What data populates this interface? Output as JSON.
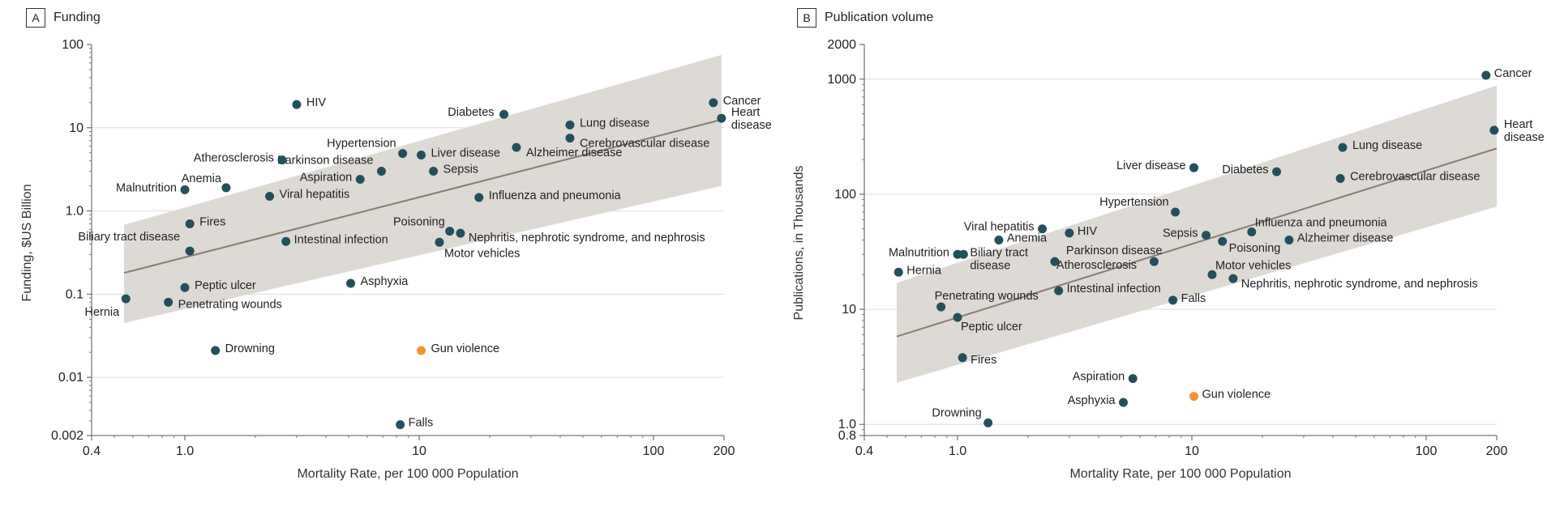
{
  "colors": {
    "point": "#244f5c",
    "highlight": "#f0962f",
    "band": "#dbd8d4",
    "fit": "#8a7e74",
    "grid": "#dddddd"
  },
  "chart_data": [
    {
      "type": "scatter",
      "panel_letter": "A",
      "title": "Funding",
      "xlabel": "Mortality Rate, per 100 000 Population",
      "ylabel": "Funding, $US Billion",
      "x_scale": "log",
      "y_scale": "log",
      "xlim": [
        0.4,
        200
      ],
      "ylim": [
        0.002,
        100
      ],
      "x_ticks": [
        0.4,
        1.0,
        10,
        100,
        200
      ],
      "x_tick_labels": [
        "0.4",
        "1.0",
        "10",
        "100",
        "200"
      ],
      "y_ticks": [
        0.002,
        0.01,
        0.1,
        1.0,
        10,
        100
      ],
      "y_tick_labels": [
        "0.002",
        "0.01",
        "0.1",
        "1.0",
        "10",
        "100"
      ],
      "grid": "horizontal",
      "fit_line": [
        [
          0.55,
          0.18
        ],
        [
          195,
          12.5
        ]
      ],
      "confidence_band": {
        "upper": [
          [
            0.55,
            0.68
          ],
          [
            195,
            75
          ]
        ],
        "lower": [
          [
            0.55,
            0.045
          ],
          [
            195,
            2.0
          ]
        ]
      },
      "points": [
        {
          "label": "Cancer",
          "x": 180,
          "y": 20
        },
        {
          "label": "Heart\ndisease",
          "x": 195,
          "y": 13
        },
        {
          "label": "Lung disease",
          "x": 44,
          "y": 10.8
        },
        {
          "label": "Diabetes",
          "x": 23,
          "y": 14.5
        },
        {
          "label": "Cerebrovascular disease",
          "x": 44,
          "y": 7.5
        },
        {
          "label": "Alzheimer disease",
          "x": 26,
          "y": 5.8
        },
        {
          "label": "HIV",
          "x": 3.0,
          "y": 19
        },
        {
          "label": "Hypertension",
          "x": 8.5,
          "y": 4.9
        },
        {
          "label": "Liver disease",
          "x": 10.2,
          "y": 4.7
        },
        {
          "label": "Parkinson disease",
          "x": 6.9,
          "y": 3.0
        },
        {
          "label": "Aspiration",
          "x": 5.6,
          "y": 2.4
        },
        {
          "label": "Sepsis",
          "x": 11.5,
          "y": 3.0
        },
        {
          "label": "Atherosclerosis",
          "x": 2.6,
          "y": 4.1
        },
        {
          "label": "Anemia",
          "x": 1.5,
          "y": 1.9
        },
        {
          "label": "Malnutrition",
          "x": 1.0,
          "y": 1.8
        },
        {
          "label": "Viral hepatitis",
          "x": 2.3,
          "y": 1.5
        },
        {
          "label": "Influenza and pneumonia",
          "x": 18,
          "y": 1.45
        },
        {
          "label": "Fires",
          "x": 1.05,
          "y": 0.7
        },
        {
          "label": "Poisoning",
          "x": 13.5,
          "y": 0.57
        },
        {
          "label": "Nephritis, nephrotic syndrome, and nephrosis",
          "x": 15,
          "y": 0.54
        },
        {
          "label": "Motor vehicles",
          "x": 12.2,
          "y": 0.42
        },
        {
          "label": "Intestinal infection",
          "x": 2.7,
          "y": 0.43
        },
        {
          "label": "Biliary tract disease",
          "x": 1.05,
          "y": 0.33
        },
        {
          "label": "Peptic ulcer",
          "x": 1.0,
          "y": 0.12
        },
        {
          "label": "Asphyxia",
          "x": 5.1,
          "y": 0.135
        },
        {
          "label": "Hernia",
          "x": 0.56,
          "y": 0.088
        },
        {
          "label": "Penetrating wounds",
          "x": 0.85,
          "y": 0.08
        },
        {
          "label": "Drowning",
          "x": 1.35,
          "y": 0.021
        },
        {
          "label": "Gun violence",
          "x": 10.2,
          "y": 0.021,
          "highlight": true
        },
        {
          "label": "Falls",
          "x": 8.3,
          "y": 0.0027
        }
      ]
    },
    {
      "type": "scatter",
      "panel_letter": "B",
      "title": "Publication volume",
      "xlabel": "Mortality Rate, per 100 000 Population",
      "ylabel": "Publications, in Thousands",
      "x_scale": "log",
      "y_scale": "log",
      "xlim": [
        0.4,
        200
      ],
      "ylim": [
        0.8,
        2000
      ],
      "x_ticks": [
        0.4,
        1.0,
        10,
        100,
        200
      ],
      "x_tick_labels": [
        "0.4",
        "1.0",
        "10",
        "100",
        "200"
      ],
      "y_ticks": [
        0.8,
        1.0,
        10,
        100,
        1000,
        2000
      ],
      "y_tick_labels": [
        "0.8",
        "1.0",
        "10",
        "100",
        "1000",
        "2000"
      ],
      "grid": "horizontal",
      "fit_line": [
        [
          0.55,
          5.8
        ],
        [
          200,
          250
        ]
      ],
      "confidence_band": {
        "upper": [
          [
            0.55,
            17
          ],
          [
            200,
            880
          ]
        ],
        "lower": [
          [
            0.55,
            2.3
          ],
          [
            200,
            78
          ]
        ]
      },
      "points": [
        {
          "label": "Cancer",
          "x": 180,
          "y": 1080
        },
        {
          "label": "Heart\ndisease",
          "x": 195,
          "y": 360
        },
        {
          "label": "Lung disease",
          "x": 44,
          "y": 255
        },
        {
          "label": "Diabetes",
          "x": 23,
          "y": 157
        },
        {
          "label": "Liver disease",
          "x": 10.2,
          "y": 170
        },
        {
          "label": "Cerebrovascular disease",
          "x": 43,
          "y": 137
        },
        {
          "label": "Hypertension",
          "x": 8.5,
          "y": 70
        },
        {
          "label": "Viral hepatitis",
          "x": 2.3,
          "y": 50
        },
        {
          "label": "HIV",
          "x": 3.0,
          "y": 46
        },
        {
          "label": "Influenza and pneumonia",
          "x": 18,
          "y": 47
        },
        {
          "label": "Sepsis",
          "x": 11.5,
          "y": 44
        },
        {
          "label": "Anemia",
          "x": 1.5,
          "y": 40
        },
        {
          "label": "Alzheimer disease",
          "x": 26,
          "y": 40
        },
        {
          "label": "Poisoning",
          "x": 13.5,
          "y": 39
        },
        {
          "label": "Malnutrition",
          "x": 1.0,
          "y": 30
        },
        {
          "label": "Biliary tract\ndisease",
          "x": 1.06,
          "y": 30
        },
        {
          "label": "Parkinson disease",
          "x": 6.9,
          "y": 26
        },
        {
          "label": "Atherosclerosis",
          "x": 2.6,
          "y": 26
        },
        {
          "label": "Hernia",
          "x": 0.56,
          "y": 21
        },
        {
          "label": "Motor vehicles",
          "x": 12.2,
          "y": 20
        },
        {
          "label": "Nephritis, nephrotic syndrome, and nephrosis",
          "x": 15,
          "y": 18.5
        },
        {
          "label": "Intestinal infection",
          "x": 2.7,
          "y": 14.5
        },
        {
          "label": "Falls",
          "x": 8.3,
          "y": 12
        },
        {
          "label": "Penetrating wounds",
          "x": 0.85,
          "y": 10.5
        },
        {
          "label": "Peptic ulcer",
          "x": 1.0,
          "y": 8.5
        },
        {
          "label": "Fires",
          "x": 1.05,
          "y": 3.8
        },
        {
          "label": "Aspiration",
          "x": 5.6,
          "y": 2.5
        },
        {
          "label": "Asphyxia",
          "x": 5.1,
          "y": 1.55
        },
        {
          "label": "Gun violence",
          "x": 10.2,
          "y": 1.75,
          "highlight": true
        },
        {
          "label": "Drowning",
          "x": 1.35,
          "y": 1.03
        }
      ]
    }
  ]
}
